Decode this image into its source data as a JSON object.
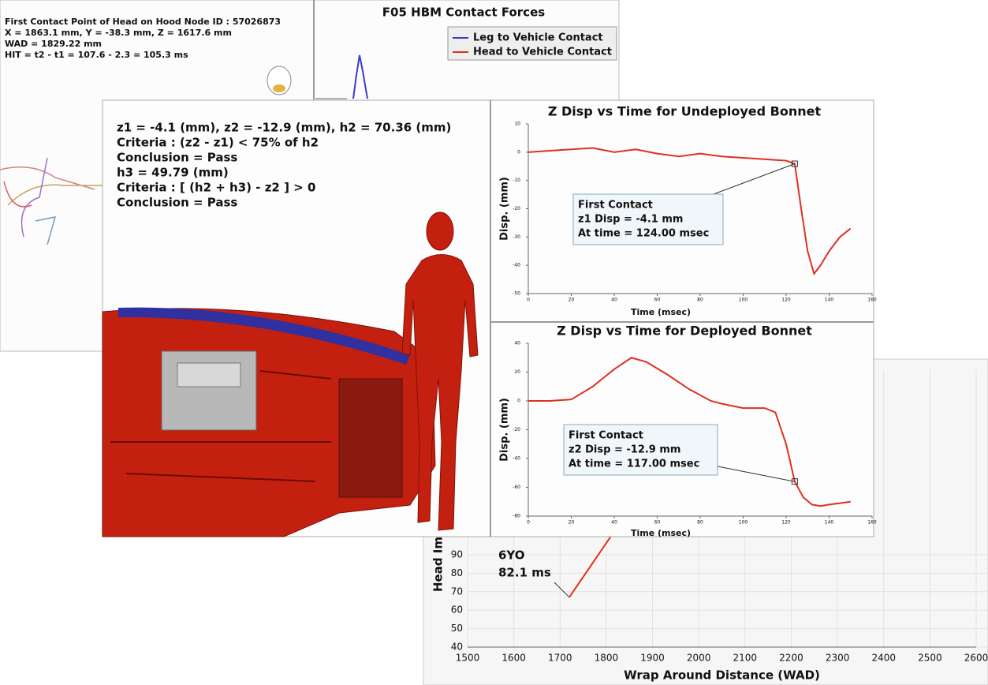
{
  "panels": {
    "head_contact": {
      "lines": [
        "First Contact Point of Head on Hood Node ID : 57026873",
        "X = 1863.1 mm, Y = -38.3 mm, Z = 1617.6 mm",
        "WAD = 1829.22 mm",
        "HIT = t2 - t1 = 107.6 - 2.3 = 105.3 ms"
      ]
    },
    "contact_forces": {
      "title": "F05 HBM Contact Forces",
      "legend": [
        {
          "name": "Leg to Vehicle Contact",
          "color": "#3a3ad0"
        },
        {
          "name": "Head to Vehicle Contact",
          "color": "#e03020"
        }
      ]
    },
    "criteria": {
      "lines": [
        "z1 = -4.1 (mm), z2 = -12.9 (mm), h2 = 70.36 (mm)",
        "Criteria : (z2 - z1) < 75% of h2",
        "Conclusion = Pass",
        "h3 = 49.79 (mm)",
        "Criteria : [ (h2 + h3) - z2 ] > 0",
        "Conclusion = Pass"
      ]
    }
  },
  "chart_data": [
    {
      "type": "line",
      "title": "Z Disp vs Time for Undeployed Bonnet",
      "x_label": "Time (msec)",
      "y_label": "Disp. (mm)",
      "x": [
        0,
        10,
        20,
        30,
        40,
        50,
        60,
        70,
        80,
        90,
        100,
        110,
        120,
        124,
        127,
        130,
        133,
        136,
        140,
        145,
        150
      ],
      "series": [
        {
          "color": "#e03020",
          "values": [
            0,
            0.5,
            1,
            1.5,
            0,
            1,
            -0.5,
            -1.5,
            -0.5,
            -1.5,
            -2,
            -2.5,
            -3,
            -4.1,
            -20,
            -35,
            -43,
            -40,
            -35,
            -30,
            -27
          ]
        }
      ],
      "annotation": [
        "First Contact",
        "z1 Disp = -4.1 mm",
        "At time = 124.00 msec"
      ],
      "xlim": [
        0,
        160
      ],
      "xticks": [
        0,
        20,
        40,
        60,
        80,
        100,
        120,
        140,
        160
      ],
      "ylim": [
        -50,
        10
      ],
      "yticks": [
        -50,
        -40,
        -30,
        -20,
        -10,
        0,
        10
      ],
      "grid": false
    },
    {
      "type": "line",
      "title": "Z Disp vs Time for Deployed Bonnet",
      "x_label": "Time (msec)",
      "y_label": "Disp. (mm)",
      "x": [
        0,
        10,
        20,
        30,
        40,
        48,
        55,
        65,
        75,
        85,
        90,
        100,
        110,
        115,
        120,
        124,
        128,
        132,
        136,
        140,
        145,
        150
      ],
      "series": [
        {
          "color": "#e03020",
          "values": [
            0,
            0,
            1,
            10,
            22,
            30,
            27,
            18,
            8,
            0,
            -2,
            -5,
            -5,
            -8,
            -30,
            -56,
            -67,
            -72,
            -73,
            -72,
            -71,
            -70
          ]
        }
      ],
      "annotation": [
        "First Contact",
        "z2 Disp = -12.9 mm",
        "At time = 117.00 msec"
      ],
      "xlim": [
        0,
        160
      ],
      "xticks": [
        0,
        20,
        40,
        60,
        80,
        100,
        120,
        140,
        160
      ],
      "ylim": [
        -80,
        40
      ],
      "yticks": [
        -80,
        -60,
        -40,
        -20,
        0,
        20,
        40
      ],
      "grid": false
    },
    {
      "type": "line",
      "x_label": "Wrap Around Distance (WAD)",
      "y_label": "Head Im",
      "x": [
        1720,
        1810
      ],
      "series": [
        {
          "color": "#e03020",
          "values": [
            67,
            100
          ]
        }
      ],
      "annotation": [
        "6YO",
        "82.1 ms"
      ],
      "xlim": [
        1500,
        2600
      ],
      "xticks": [
        1500,
        1600,
        1700,
        1800,
        1900,
        2000,
        2100,
        2200,
        2300,
        2400,
        2500,
        2600
      ],
      "ylim": [
        40,
        190
      ],
      "yticks": [
        40,
        50,
        60,
        70,
        80,
        90
      ],
      "grid": true
    }
  ]
}
